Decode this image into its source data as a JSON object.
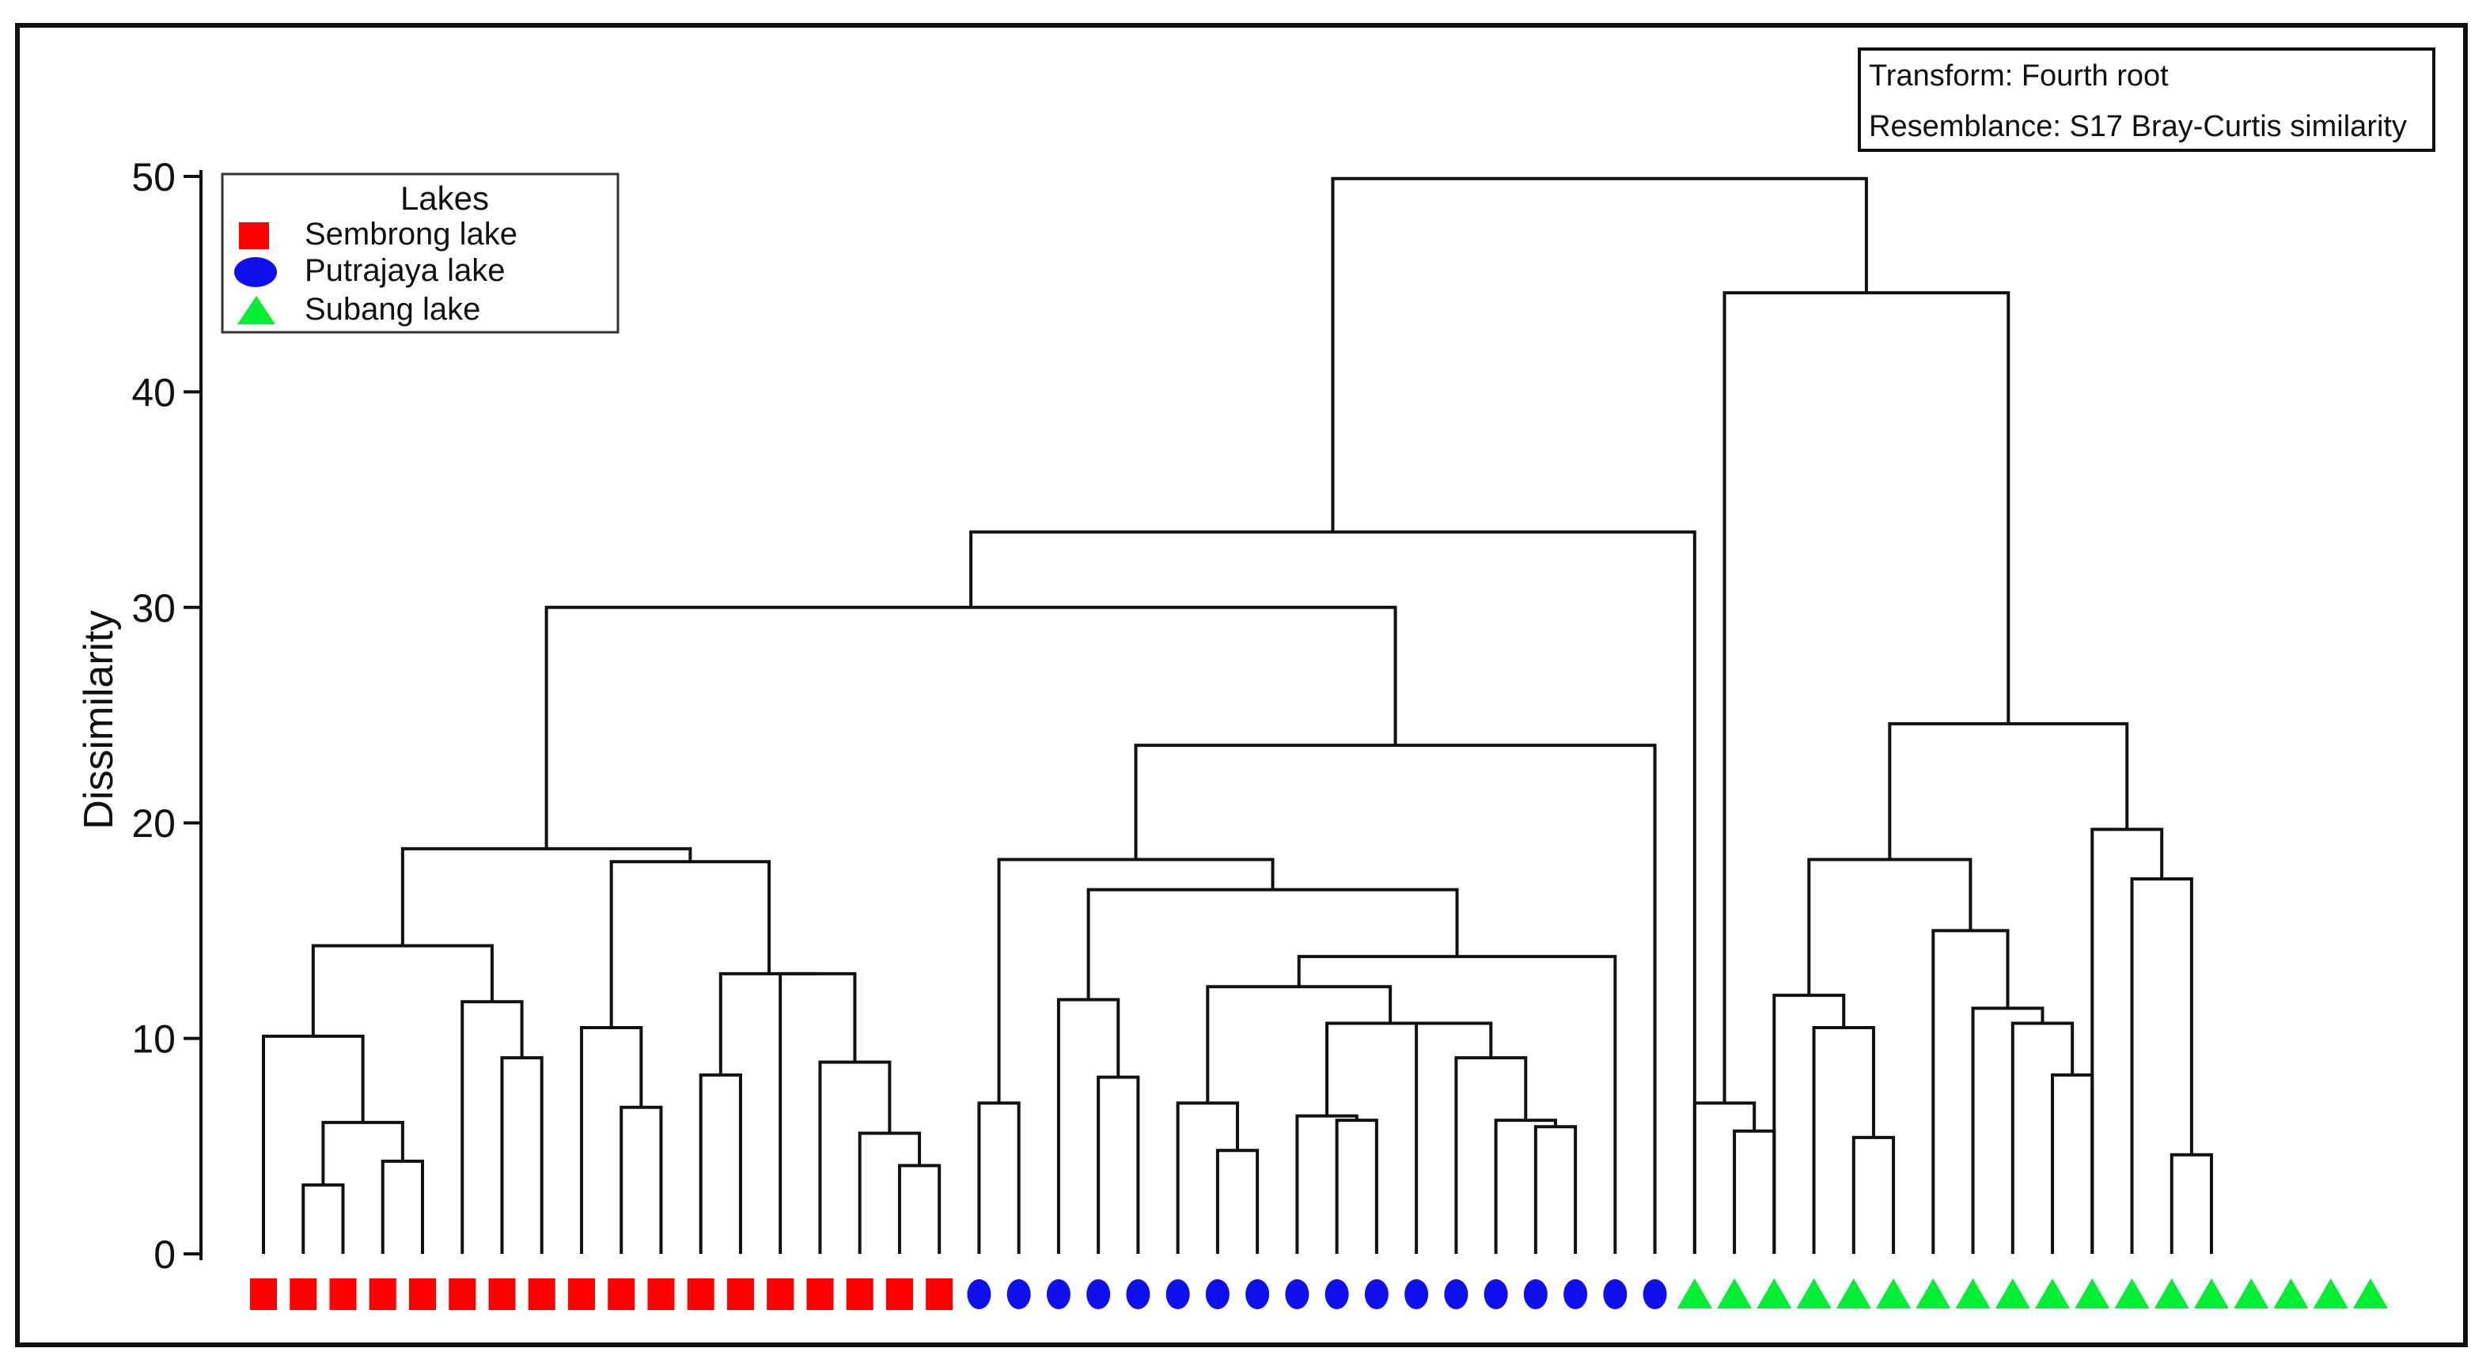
{
  "chart_data": {
    "type": "dendrogram",
    "title": "",
    "ylabel": "Dissimilarity",
    "ylim": [
      0,
      50
    ],
    "yticks": [
      "0",
      "10",
      "20",
      "30",
      "40",
      "50"
    ],
    "legend": {
      "title": "Lakes",
      "position": "top-left",
      "entries": [
        {
          "label": "Sembrong lake",
          "shape": "square",
          "color": "#ff0000"
        },
        {
          "label": "Putrajaya lake",
          "shape": "circle",
          "color": "#1010ee"
        },
        {
          "label": "Subang lake",
          "shape": "triangle",
          "color": "#00ee33"
        }
      ]
    },
    "info_box": {
      "position": "top-right",
      "lines": [
        "Transform: Fourth root",
        "Resemblance: S17 Bray-Curtis similarity"
      ]
    },
    "leaves": [
      "square",
      "square",
      "square",
      "square",
      "square",
      "square",
      "square",
      "square",
      "square",
      "square",
      "square",
      "square",
      "square",
      "square",
      "square",
      "square",
      "square",
      "square",
      "circle",
      "circle",
      "circle",
      "circle",
      "circle",
      "circle",
      "circle",
      "circle",
      "circle",
      "circle",
      "circle",
      "circle",
      "circle",
      "circle",
      "circle",
      "circle",
      "circle",
      "circle",
      "triangle",
      "triangle",
      "triangle",
      "triangle",
      "triangle",
      "triangle",
      "triangle",
      "triangle",
      "triangle",
      "triangle",
      "triangle",
      "triangle",
      "triangle",
      "triangle",
      "triangle",
      "triangle",
      "triangle",
      "triangle"
    ],
    "merges": [
      {
        "id": "A",
        "left": 1,
        "right": 2,
        "height": 3.2
      },
      {
        "id": "B",
        "left": 3,
        "right": 4,
        "height": 4.3
      },
      {
        "id": "C",
        "left": "A",
        "right": "B",
        "height": 6.1
      },
      {
        "id": "D",
        "left": 0,
        "right": "C",
        "height": 10.1
      },
      {
        "id": "E",
        "left": 6,
        "right": 7,
        "height": 9.1
      },
      {
        "id": "F",
        "left": 5,
        "right": "E",
        "height": 11.7
      },
      {
        "id": "G",
        "left": "D",
        "right": "F",
        "height": 14.3
      },
      {
        "id": "H",
        "left": 9,
        "right": 10,
        "height": 6.8
      },
      {
        "id": "I",
        "left": 8,
        "right": "H",
        "height": 10.5
      },
      {
        "id": "J",
        "left": 11,
        "right": 12,
        "height": 8.3
      },
      {
        "id": "K",
        "left": 16,
        "right": 17,
        "height": 4.1
      },
      {
        "id": "L",
        "left": 15,
        "right": "K",
        "height": 5.6
      },
      {
        "id": "M",
        "left": 14,
        "right": "L",
        "height": 8.9
      },
      {
        "id": "N",
        "left": 13,
        "right": "M",
        "height": 13.0
      },
      {
        "id": "O",
        "left": "J",
        "right": "N",
        "height": 13.0
      },
      {
        "id": "P",
        "left": "I",
        "right": "O",
        "height": 18.2
      },
      {
        "id": "Q",
        "left": "G",
        "right": "P",
        "height": 18.8
      },
      {
        "id": "R",
        "left": 18,
        "right": 19,
        "height": 7.0
      },
      {
        "id": "S",
        "left": 21,
        "right": 22,
        "height": 8.2
      },
      {
        "id": "T",
        "left": 20,
        "right": "S",
        "height": 11.8
      },
      {
        "id": "U",
        "left": 24,
        "right": 25,
        "height": 4.8
      },
      {
        "id": "V",
        "left": 23,
        "right": "U",
        "height": 7.0
      },
      {
        "id": "W",
        "left": 27,
        "right": 28,
        "height": 6.2
      },
      {
        "id": "X",
        "left": 26,
        "right": "W",
        "height": 6.4
      },
      {
        "id": "Y",
        "left": 32,
        "right": 33,
        "height": 5.9
      },
      {
        "id": "Z",
        "left": 31,
        "right": "Y",
        "height": 6.2
      },
      {
        "id": "AA",
        "left": 30,
        "right": "Z",
        "height": 9.1
      },
      {
        "id": "AB",
        "left": 29,
        "right": "AA",
        "height": 10.7
      },
      {
        "id": "AC",
        "left": "X",
        "right": "AB",
        "height": 10.7
      },
      {
        "id": "AD",
        "left": "V",
        "right": "AC",
        "height": 12.4
      },
      {
        "id": "AE",
        "left": "AD",
        "right": 34,
        "height": 13.8
      },
      {
        "id": "AF",
        "left": "T",
        "right": "AE",
        "height": 16.9
      },
      {
        "id": "AG",
        "left": "R",
        "right": "AF",
        "height": 18.3
      },
      {
        "id": "AH",
        "left": "AG",
        "right": 35,
        "height": 23.6
      },
      {
        "id": "AI",
        "left": "Q",
        "right": "AH",
        "height": 30.0
      },
      {
        "id": "AJ",
        "left": "AI",
        "right": 36,
        "height": 33.5
      },
      {
        "id": "AK",
        "left": 37,
        "right": 38,
        "height": 5.7
      },
      {
        "id": "AL",
        "left": 36,
        "right": "AK",
        "height": 7.0
      },
      {
        "id": "AM",
        "left": 40,
        "right": 41,
        "height": 5.4
      },
      {
        "id": "AN",
        "left": 39,
        "right": "AM",
        "height": 10.5
      },
      {
        "id": "AO",
        "left": 38,
        "right": "AN",
        "height": 12.0
      },
      {
        "id": "AP",
        "left": 45,
        "right": 46,
        "height": 8.3
      },
      {
        "id": "AQ",
        "left": 44,
        "right": "AP",
        "height": 10.7
      },
      {
        "id": "AR",
        "left": 43,
        "right": "AQ",
        "height": 11.4
      },
      {
        "id": "AS",
        "left": 42,
        "right": "AR",
        "height": 15.0
      },
      {
        "id": "AT",
        "left": "AO",
        "right": "AS",
        "height": 18.3
      },
      {
        "id": "AU",
        "left": 48,
        "right": 49,
        "height": 4.6
      },
      {
        "id": "AV",
        "left": 47,
        "right": "AU",
        "height": 17.4
      },
      {
        "id": "AW",
        "left": 46,
        "right": "AV",
        "height": 19.7
      },
      {
        "id": "AX",
        "left": "AT",
        "right": "AW",
        "height": 24.6
      },
      {
        "id": "AY",
        "left": "AL",
        "right": "AX",
        "height": 44.6
      },
      {
        "id": "AZ",
        "left": "AJ",
        "right": "AY",
        "height": 49.9
      }
    ]
  }
}
